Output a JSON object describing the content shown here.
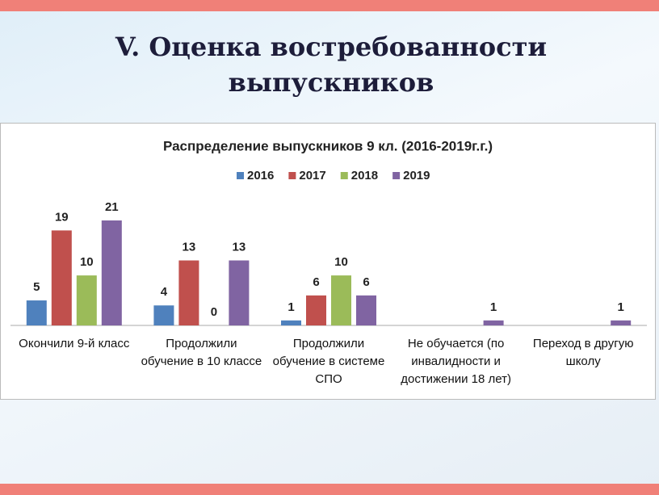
{
  "slide_title": "V. Оценка востребованности выпускников",
  "chart_data": {
    "type": "bar",
    "title": "Распределение выпускников 9 кл. (2016-2019г.г.)",
    "categories": [
      "Окончили 9-й класс",
      "Продолжили обучение в 10 классе",
      "Продолжили обучение в системе СПО",
      "Не обучается (по инвалидности и достижении 18 лет)",
      "Переход в другую школу"
    ],
    "series": [
      {
        "name": "2016",
        "color": "#4f81bd",
        "values": [
          5,
          4,
          1,
          null,
          null
        ]
      },
      {
        "name": "2017",
        "color": "#c0504d",
        "values": [
          19,
          13,
          6,
          null,
          null
        ]
      },
      {
        "name": "2018",
        "color": "#9bbb59",
        "values": [
          10,
          0,
          10,
          null,
          null
        ]
      },
      {
        "name": "2019",
        "color": "#8064a2",
        "values": [
          21,
          13,
          6,
          1,
          1
        ]
      }
    ],
    "legend": "top"
  }
}
